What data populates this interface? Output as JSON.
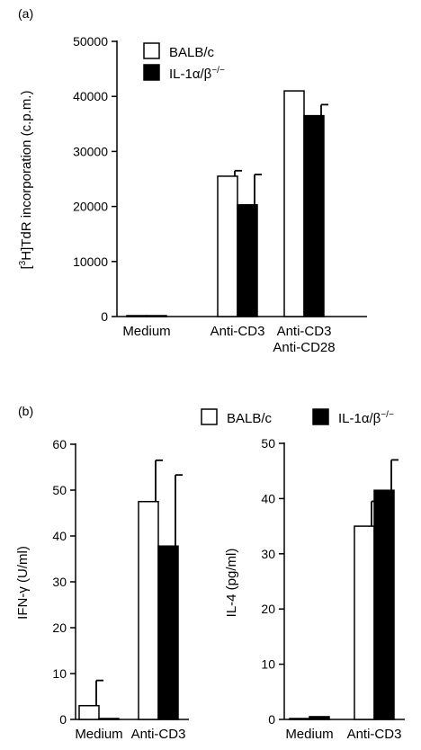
{
  "chart_data": [
    {
      "panel": "(a)",
      "type": "bar",
      "ylabel_sup": "3",
      "ylabel_pre": "[",
      "ylabel_post": "H]TdR incorporation (c.p.m.)",
      "ylim": [
        0,
        50000
      ],
      "yticks": [
        "0",
        "10000",
        "20000",
        "30000",
        "40000",
        "50000"
      ],
      "categories": [
        [
          "Medium"
        ],
        [
          "Anti-CD3"
        ],
        [
          "Anti-CD3",
          "Anti-CD28"
        ]
      ],
      "legend": {
        "placement": "top-left",
        "entries": [
          "BALB/c",
          "IL-1α/β"
        ],
        "sup": "−/−"
      },
      "series": [
        {
          "name": "BALB/c",
          "fill": "#ffffff",
          "values": [
            100,
            25500,
            41000
          ],
          "errors": [
            0,
            1000,
            0
          ]
        },
        {
          "name": "IL-1α/β−/−",
          "fill": "#000000",
          "values": [
            100,
            20300,
            36500
          ],
          "errors": [
            0,
            5500,
            2000
          ]
        }
      ]
    },
    {
      "panel": "(b)",
      "type": "bar",
      "ylabel": "IFN-γ (U/ml)",
      "ylim": [
        0,
        60
      ],
      "yticks": [
        "0",
        "10",
        "20",
        "30",
        "40",
        "50",
        "60"
      ],
      "categories": [
        [
          "Medium"
        ],
        [
          "Anti-CD3"
        ]
      ],
      "series": [
        {
          "name": "BALB/c",
          "fill": "#ffffff",
          "values": [
            3,
            47.5
          ],
          "errors": [
            5.5,
            9
          ]
        },
        {
          "name": "IL-1α/β−/−",
          "fill": "#000000",
          "values": [
            0,
            37.8
          ],
          "errors": [
            0,
            15.5
          ]
        }
      ]
    },
    {
      "panel": "",
      "type": "bar",
      "ylabel": "IL-4 (pg/ml)",
      "ylim": [
        0,
        50
      ],
      "yticks": [
        "0",
        "10",
        "20",
        "30",
        "40",
        "50"
      ],
      "categories": [
        [
          "Medium"
        ],
        [
          "Anti-CD3"
        ]
      ],
      "series": [
        {
          "name": "BALB/c",
          "fill": "#ffffff",
          "values": [
            0,
            35
          ],
          "errors": [
            0,
            4.5
          ]
        },
        {
          "name": "IL-1α/β−/−",
          "fill": "#000000",
          "values": [
            0.5,
            41.5
          ],
          "errors": [
            0,
            5.5
          ]
        }
      ]
    }
  ],
  "panel_b_legend": {
    "entries": [
      "BALB/c",
      "IL-1α/β"
    ],
    "sup": "−/−"
  }
}
